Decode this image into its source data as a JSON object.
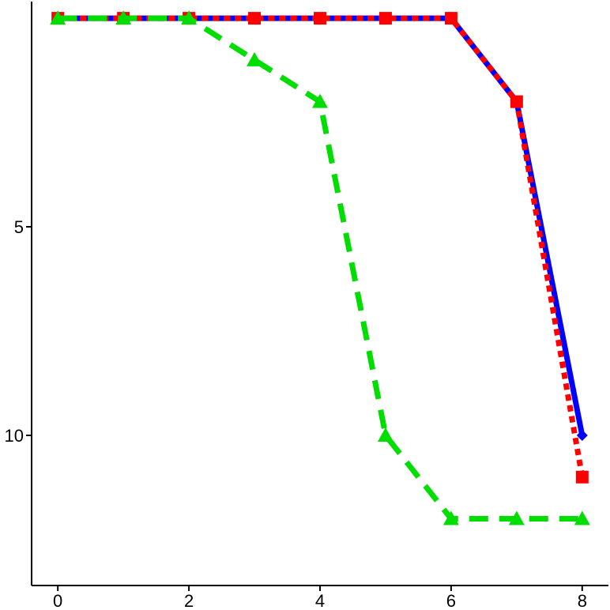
{
  "chart_data": {
    "type": "line",
    "x": [
      0,
      1,
      2,
      3,
      4,
      5,
      6,
      7,
      8
    ],
    "xlim": [
      -0.4,
      8.4
    ],
    "ylim": [
      13.6,
      -0.4
    ],
    "y_reversed": true,
    "x_ticks": [
      0,
      2,
      4,
      6,
      8
    ],
    "y_ticks": [
      5,
      10
    ],
    "grid": false,
    "legend": false,
    "series": [
      {
        "values": [
          0,
          0,
          0,
          0,
          0,
          0,
          0,
          2,
          10
        ],
        "color": "#0000ff",
        "line_style": "solid",
        "marker": "diamond"
      },
      {
        "values": [
          0,
          0,
          0,
          0,
          0,
          0,
          0,
          2,
          11
        ],
        "color": "#ff0000",
        "line_style": "dotted",
        "marker": "square"
      },
      {
        "values": [
          0,
          0,
          0,
          1,
          2,
          10,
          12,
          12,
          12
        ],
        "color": "#00dd00",
        "line_style": "dashed",
        "marker": "triangle"
      }
    ]
  }
}
